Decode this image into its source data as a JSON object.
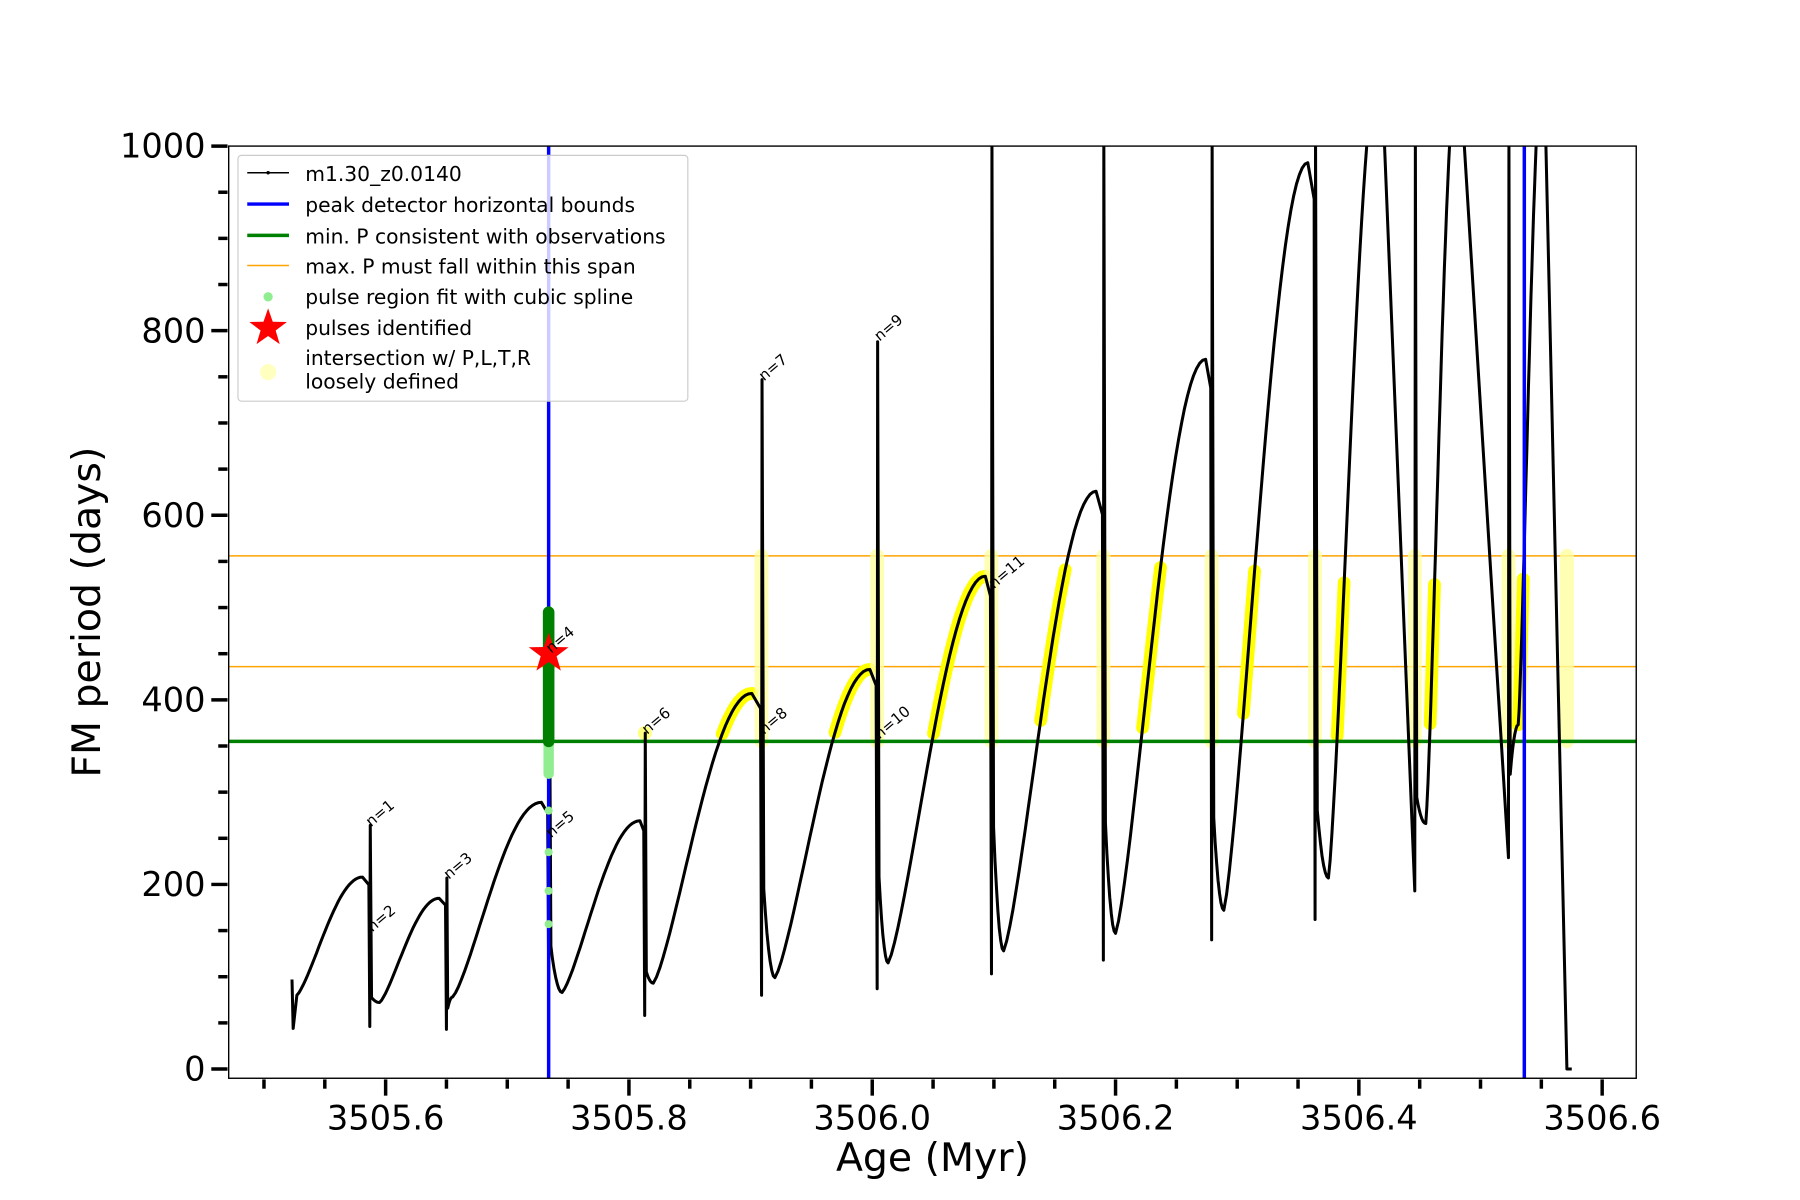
{
  "chart_data": {
    "type": "line",
    "xlabel": "Age (Myr)",
    "ylabel": "FM period (days)",
    "xlim": [
      3505.471,
      3506.628
    ],
    "ylim": [
      -10,
      1000
    ],
    "xticks": [
      3505.6,
      3505.8,
      3506.0,
      3506.2,
      3506.4,
      3506.6
    ],
    "xtick_labels": [
      "3505.6",
      "3505.8",
      "3506.0",
      "3506.2",
      "3506.4",
      "3506.6"
    ],
    "yticks": [
      0,
      200,
      400,
      600,
      800,
      1000
    ],
    "ytick_labels": [
      "0",
      "200",
      "400",
      "600",
      "800",
      "1000"
    ],
    "grid": false,
    "legend_position": "top-left",
    "legend": [
      {
        "label": "m1.30_z0.0140",
        "color": "#000000",
        "marker": "line-dot"
      },
      {
        "label": "peak detector horizontal bounds",
        "color": "#0000ff",
        "marker": "line"
      },
      {
        "label": "min. P consistent with observations",
        "color": "#008000",
        "marker": "line"
      },
      {
        "label": "max. P must fall within this span",
        "color": "#ffa500",
        "marker": "line"
      },
      {
        "label": "pulse region fit with cubic spline",
        "color": "#90ee90",
        "marker": "dot"
      },
      {
        "label": "pulses identified",
        "color": "#ff0000",
        "marker": "star"
      },
      {
        "label": "intersection w/ P,L,T,R",
        "label2": "loosely defined",
        "color": "#ffffc0",
        "marker": "circle"
      }
    ],
    "vertical_lines": {
      "color": "#0000ff",
      "x": [
        3505.734,
        3506.536
      ]
    },
    "min_period_line": {
      "color": "#008000",
      "y": 355
    },
    "max_period_span": {
      "color": "#ffa500",
      "y": [
        436,
        556
      ]
    },
    "series_start": {
      "age": 3505.523,
      "P": 97
    },
    "cycles": [
      {
        "min_age": 3505.527,
        "min_P": 80,
        "peak_age": 3505.581,
        "peak_P": 208,
        "drop_age": 3505.587,
        "drop_P": 46,
        "spike_P": 264
      },
      {
        "min_age": 3505.595,
        "min_P": 72,
        "peak_age": 3505.644,
        "peak_P": 185,
        "drop_age": 3505.65,
        "drop_P": 43,
        "spike_P": 207
      },
      {
        "min_age": 3505.655,
        "min_P": 78,
        "peak_age": 3505.728,
        "peak_P": 289,
        "drop_age": 3505.734,
        "drop_P": 95,
        "spike_P": 495
      },
      {
        "min_age": 3505.745,
        "min_P": 83,
        "peak_age": 3505.809,
        "peak_P": 269,
        "drop_age": 3505.813,
        "drop_P": 58,
        "spike_P": 364
      },
      {
        "min_age": 3505.82,
        "min_P": 93,
        "peak_age": 3505.901,
        "peak_P": 407,
        "drop_age": 3505.909,
        "drop_P": 80,
        "spike_P": 747
      },
      {
        "min_age": 3505.92,
        "min_P": 99,
        "peak_age": 3505.998,
        "peak_P": 433,
        "drop_age": 3506.004,
        "drop_P": 87,
        "spike_P": 788
      },
      {
        "min_age": 3506.013,
        "min_P": 115,
        "peak_age": 3506.093,
        "peak_P": 534,
        "drop_age": 3506.098,
        "drop_P": 103,
        "spike_P": 1010
      },
      {
        "min_age": 3506.108,
        "min_P": 128,
        "peak_age": 3506.184,
        "peak_P": 626,
        "drop_age": 3506.19,
        "drop_P": 118,
        "spike_P": 1010
      },
      {
        "min_age": 3506.2,
        "min_P": 147,
        "peak_age": 3506.274,
        "peak_P": 769,
        "drop_age": 3506.279,
        "drop_P": 140,
        "spike_P": 1010
      },
      {
        "min_age": 3506.289,
        "min_P": 172,
        "peak_age": 3506.358,
        "peak_P": 982,
        "drop_age": 3506.364,
        "drop_P": 162,
        "spike_P": 1010
      },
      {
        "min_age": 3506.375,
        "min_P": 207,
        "peak_age": 3506.418,
        "peak_P": 1100,
        "drop_age": 3506.446,
        "drop_P": 193,
        "spike_P": 1010
      },
      {
        "min_age": 3506.455,
        "min_P": 266,
        "peak_age": 3506.482,
        "peak_P": 1100,
        "drop_age": 3506.523,
        "drop_P": 229,
        "spike_P": 1010
      },
      {
        "min_age": 3506.531,
        "min_P": 373,
        "peak_age": 3506.552,
        "peak_P": 1100,
        "drop_age": 3506.571,
        "drop_P": 0,
        "spike_P": 1010
      }
    ],
    "pulses_identified": [
      {
        "age": 3505.734,
        "P": 450
      }
    ],
    "spline_points": [
      {
        "age": 3505.734,
        "P": [
          280,
          235,
          193,
          157
        ]
      }
    ],
    "annotations": [
      {
        "text": "n=1",
        "age": 3505.588,
        "P": 262
      },
      {
        "text": "n=2",
        "age": 3505.589,
        "P": 148
      },
      {
        "text": "n=3",
        "age": 3505.652,
        "P": 205
      },
      {
        "text": "n=4",
        "age": 3505.736,
        "P": 450
      },
      {
        "text": "n=5",
        "age": 3505.736,
        "P": 250
      },
      {
        "text": "n=6",
        "age": 3505.815,
        "P": 362
      },
      {
        "text": "n=7",
        "age": 3505.911,
        "P": 745
      },
      {
        "text": "n=8",
        "age": 3505.911,
        "P": 362
      },
      {
        "text": "n=9",
        "age": 3506.006,
        "P": 788
      },
      {
        "text": "n=10",
        "age": 3506.006,
        "P": 357
      },
      {
        "text": "n=11",
        "age": 3506.1,
        "P": 520
      }
    ]
  }
}
